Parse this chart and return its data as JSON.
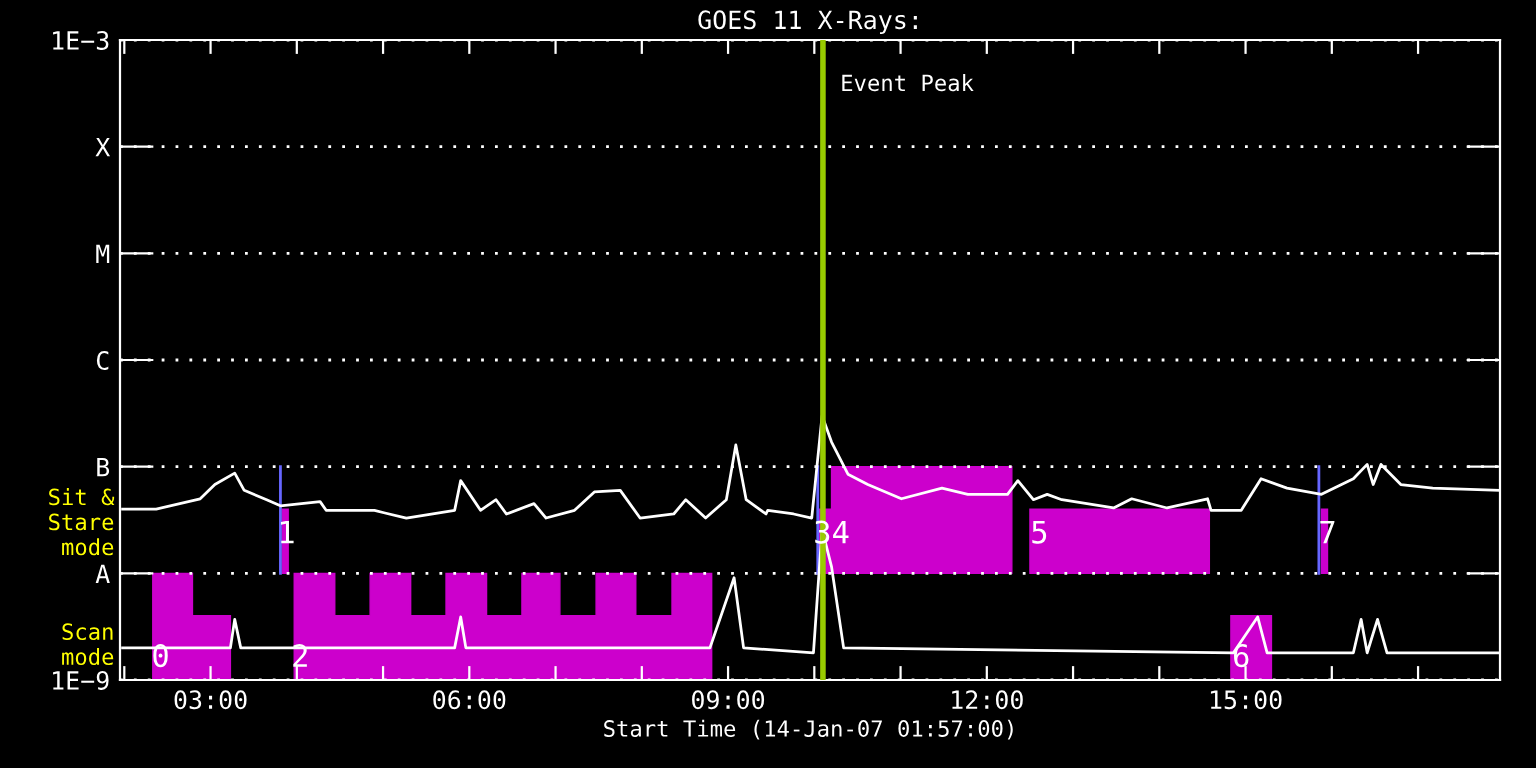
{
  "chart_data": {
    "type": "line",
    "title": "GOES 11 X-Rays:",
    "xlabel": "Start Time (14-Jan-07 01:57:00)",
    "xlim": [
      1.95,
      17.95
    ],
    "xticks": [
      {
        "value": 2,
        "label": null
      },
      {
        "value": 3,
        "label": "03:00"
      },
      {
        "value": 4,
        "label": null
      },
      {
        "value": 5,
        "label": null
      },
      {
        "value": 6,
        "label": "06:00"
      },
      {
        "value": 7,
        "label": null
      },
      {
        "value": 8,
        "label": null
      },
      {
        "value": 9,
        "label": "09:00"
      },
      {
        "value": 10,
        "label": null
      },
      {
        "value": 11,
        "label": null
      },
      {
        "value": 12,
        "label": "12:00"
      },
      {
        "value": 13,
        "label": null
      },
      {
        "value": 14,
        "label": null
      },
      {
        "value": 15,
        "label": "15:00"
      },
      {
        "value": 16,
        "label": null
      },
      {
        "value": 17,
        "label": null
      }
    ],
    "log": true,
    "ylim": [
      1e-09,
      0.001
    ],
    "yticks": [
      {
        "value": 1e-09,
        "label": "1E−9"
      },
      {
        "value": 1e-08,
        "label": "A"
      },
      {
        "value": 1e-07,
        "label": "B"
      },
      {
        "value": 1e-06,
        "label": "C"
      },
      {
        "value": 1e-05,
        "label": "M"
      },
      {
        "value": 0.0001,
        "label": "X"
      },
      {
        "value": 0.001,
        "label": "1E−3"
      }
    ],
    "grid": "y",
    "series": [
      {
        "type": "area",
        "color": "#cc00cc",
        "x": [
          2.33,
          2.79,
          2.79,
          3.23,
          3.23,
          2.33,
          null,
          3.97,
          4.44,
          4.44,
          4.85,
          4.85,
          5.32,
          5.32,
          5.73,
          5.73,
          6.2,
          6.2,
          6.61,
          6.61,
          7.05,
          7.05,
          7.47,
          7.47,
          7.93,
          7.93,
          8.35,
          8.35,
          8.81,
          8.81,
          3.97,
          null,
          14.83,
          15.3,
          15.3,
          14.83
        ],
        "values": [
          1e-08,
          1e-08,
          4e-09,
          4e-09,
          1e-09,
          1e-09,
          null,
          1e-08,
          1e-08,
          4e-09,
          4e-09,
          1e-08,
          1e-08,
          4e-09,
          4e-09,
          1e-08,
          1e-08,
          4e-09,
          4e-09,
          1e-08,
          1e-08,
          4e-09,
          4e-09,
          1e-08,
          1e-08,
          4e-09,
          4e-09,
          1e-08,
          1e-08,
          1e-09,
          1e-09,
          null,
          4e-09,
          4e-09,
          1e-09,
          1e-09
        ]
      },
      {
        "type": "area",
        "color": "#cc00cc",
        "x": [
          3.83,
          3.9,
          3.9,
          3.83,
          null,
          10.06,
          10.2,
          10.2,
          12.29,
          12.29,
          10.06,
          null,
          12.5,
          14.58,
          14.58,
          12.5,
          null,
          15.88,
          15.95,
          15.95,
          15.88
        ],
        "values": [
          4e-08,
          4e-08,
          1e-08,
          1e-08,
          null,
          4e-08,
          4e-08,
          1e-07,
          1e-07,
          1e-08,
          1e-08,
          null,
          4e-08,
          4e-08,
          1e-08,
          1e-08,
          null,
          4e-08,
          4e-08,
          1e-08,
          1e-08
        ]
      },
      {
        "type": "line",
        "color": "#6666ff",
        "x": [
          3.81,
          3.81,
          null,
          10.04,
          10.04,
          null,
          15.85,
          15.85
        ],
        "values": [
          1e-07,
          1e-08,
          null,
          1e-07,
          1e-08,
          null,
          1e-07,
          1e-08
        ]
      },
      {
        "color": "#ffffff",
        "x": [
          1.98,
          2.37,
          2.88,
          3.05,
          3.28,
          3.39,
          3.65,
          3.81,
          4.27,
          4.34,
          4.9,
          5.01,
          5.27,
          5.83,
          5.9,
          6.13,
          6.31,
          6.43,
          6.75,
          6.89,
          7.22,
          7.45,
          7.75,
          7.98,
          8.37,
          8.51,
          8.74,
          8.98,
          9.09,
          9.21,
          9.44,
          9.46,
          9.76,
          9.97,
          10.09,
          10.2,
          10.39,
          10.62,
          11.01,
          11.48,
          11.78,
          12.24,
          12.36,
          12.54,
          12.7,
          12.87,
          13.47,
          13.68,
          14.09,
          14.56,
          14.6,
          14.95,
          15.18,
          15.48,
          15.88,
          16.25,
          16.41,
          16.48,
          16.57,
          16.8,
          17.17,
          17.94
        ],
        "values": [
          4e-08,
          4e-08,
          5e-08,
          6.8e-08,
          8.7e-08,
          6e-08,
          4.9e-08,
          4.3e-08,
          4.7e-08,
          3.9e-08,
          3.9e-08,
          3.7e-08,
          3.3e-08,
          3.9e-08,
          7.4e-08,
          3.9e-08,
          4.9e-08,
          3.6e-08,
          4.5e-08,
          3.3e-08,
          3.9e-08,
          5.8e-08,
          6e-08,
          3.3e-08,
          3.6e-08,
          4.9e-08,
          3.3e-08,
          4.9e-08,
          1.6e-07,
          4.9e-08,
          3.6e-08,
          3.9e-08,
          3.6e-08,
          3.3e-08,
          3e-07,
          1.7e-07,
          8.5e-08,
          6.8e-08,
          5e-08,
          6.3e-08,
          5.5e-08,
          5.5e-08,
          7.4e-08,
          4.9e-08,
          5.5e-08,
          4.9e-08,
          4.1e-08,
          5e-08,
          4.1e-08,
          5e-08,
          3.9e-08,
          3.9e-08,
          7.7e-08,
          6.3e-08,
          5.5e-08,
          7.7e-08,
          1.05e-07,
          6.8e-08,
          1.05e-07,
          6.8e-08,
          6.3e-08,
          6e-08
        ]
      },
      {
        "color": "#ffffff",
        "x": [
          1.98,
          3.23,
          3.28,
          3.35,
          5.83,
          5.9,
          5.96,
          8.79,
          9.07,
          9.18,
          9.99,
          10.09,
          10.2,
          10.34,
          14.86,
          15.14,
          15.25,
          16.25,
          16.34,
          16.41,
          16.53,
          16.64,
          17.94
        ],
        "values": [
          2e-09,
          2e-09,
          3.7e-09,
          2e-09,
          2e-09,
          3.9e-09,
          2e-09,
          2e-09,
          9.1e-09,
          2e-09,
          1.8e-09,
          2.6e-08,
          1.15e-08,
          2e-09,
          1.8e-09,
          3.9e-09,
          1.8e-09,
          1.8e-09,
          3.7e-09,
          1.8e-09,
          3.7e-09,
          1.8e-09,
          1.8e-09
        ]
      }
    ],
    "ref_lines": [
      {
        "axis": "x",
        "value": 10.1,
        "label": "Event Peak",
        "color": "#99cc00"
      }
    ],
    "annotations": [
      "Sit & Stare mode",
      "Scan mode",
      {
        "text": "0",
        "x": 2.42,
        "y": 1.6e-09
      },
      {
        "text": "1",
        "x": 3.88,
        "y": 2.3e-08
      },
      {
        "text": "2",
        "x": 4.04,
        "y": 1.6e-09
      },
      {
        "text": "34",
        "x": 10.2,
        "y": 2.3e-08
      },
      {
        "text": "5",
        "x": 12.61,
        "y": 2.3e-08
      },
      {
        "text": "6",
        "x": 14.95,
        "y": 1.6e-09
      },
      {
        "text": "7",
        "x": 15.95,
        "y": 2.3e-08
      }
    ]
  }
}
